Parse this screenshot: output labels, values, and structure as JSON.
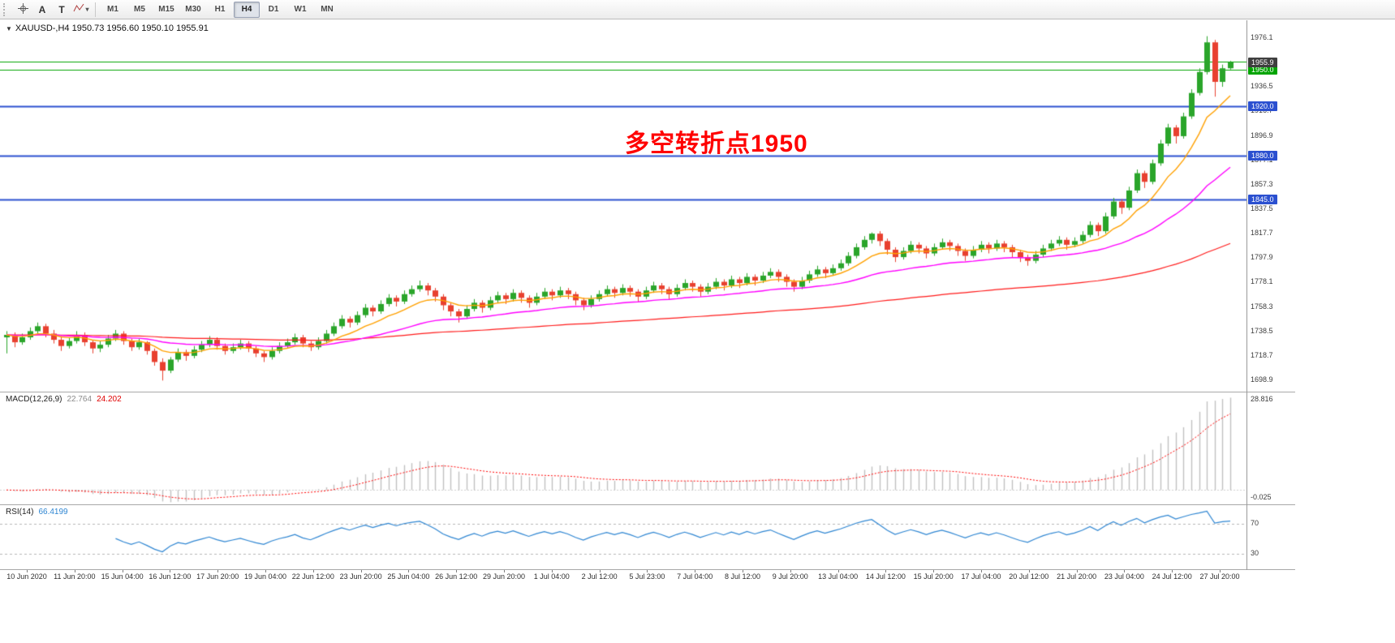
{
  "toolbar": {
    "tools": [
      {
        "name": "crosshair",
        "glyph": ""
      },
      {
        "name": "text",
        "glyph": "A"
      },
      {
        "name": "label",
        "glyph": "T"
      },
      {
        "name": "objects",
        "glyph": ""
      }
    ],
    "caret": "▾",
    "timeframes": [
      {
        "label": "M1",
        "active": false
      },
      {
        "label": "M5",
        "active": false
      },
      {
        "label": "M15",
        "active": false
      },
      {
        "label": "M30",
        "active": false
      },
      {
        "label": "H1",
        "active": false
      },
      {
        "label": "H4",
        "active": true
      },
      {
        "label": "D1",
        "active": false
      },
      {
        "label": "W1",
        "active": false
      },
      {
        "label": "MN",
        "active": false
      }
    ]
  },
  "chart": {
    "symbol_line": {
      "arrow": "▼",
      "symbol": "XAUUSD-,H4",
      "ohlc": "1950.73 1956.60 1950.10 1955.91"
    },
    "annotation": {
      "text": "多空转折点1950",
      "color": "#FF0000"
    },
    "price_axis": {
      "min": 1689.0,
      "max": 1989.9,
      "ticks": [
        1976.1,
        1956.3,
        1936.5,
        1916.7,
        1896.9,
        1877.1,
        1857.3,
        1837.5,
        1817.7,
        1797.9,
        1778.1,
        1758.3,
        1738.5,
        1718.7,
        1698.9
      ]
    },
    "hlines": [
      {
        "price": 1956.6,
        "color": "#00A400",
        "width": 1.2,
        "tag": ""
      },
      {
        "price": 1950.0,
        "color": "#00A400",
        "width": 1.2,
        "tag": "1950.0"
      },
      {
        "price": 1920.0,
        "color": "#2B50D0",
        "width": 1.8,
        "tag": "1920.0"
      },
      {
        "price": 1880.0,
        "color": "#2B50D0",
        "width": 1.8,
        "tag": "1880.0"
      },
      {
        "price": 1845.0,
        "color": "#2B50D0",
        "width": 1.8,
        "tag": "1845.0"
      }
    ],
    "price_marker": {
      "price": 1955.91,
      "tag": "1955.9",
      "bg": "#3F3F3F"
    },
    "colors": {
      "up": "#2AA52A",
      "down": "#E8402F",
      "ma_fast": "#FFA000",
      "ma_mid": "#FF00FF",
      "ma_slow": "#FF1A1A"
    },
    "ma_periods": {
      "fast": 10,
      "mid": 34,
      "slow": 120
    },
    "candles": [
      [
        1733,
        1738,
        1720,
        1735
      ],
      [
        1735,
        1737,
        1725,
        1729
      ],
      [
        1729,
        1736,
        1727,
        1733
      ],
      [
        1733,
        1741,
        1731,
        1738
      ],
      [
        1738,
        1745,
        1736,
        1742
      ],
      [
        1742,
        1744,
        1733,
        1736
      ],
      [
        1736,
        1739,
        1728,
        1731
      ],
      [
        1731,
        1734,
        1722,
        1726
      ],
      [
        1726,
        1733,
        1724,
        1730
      ],
      [
        1730,
        1738,
        1728,
        1735
      ],
      [
        1735,
        1737,
        1726,
        1729
      ],
      [
        1729,
        1731,
        1720,
        1724
      ],
      [
        1724,
        1730,
        1721,
        1727
      ],
      [
        1727,
        1735,
        1725,
        1732
      ],
      [
        1732,
        1739,
        1730,
        1736
      ],
      [
        1736,
        1738,
        1727,
        1730
      ],
      [
        1730,
        1732,
        1722,
        1725
      ],
      [
        1725,
        1732,
        1723,
        1729
      ],
      [
        1729,
        1730,
        1719,
        1722
      ],
      [
        1722,
        1724,
        1710,
        1713
      ],
      [
        1713,
        1716,
        1698,
        1706
      ],
      [
        1706,
        1717,
        1704,
        1715
      ],
      [
        1715,
        1724,
        1713,
        1721
      ],
      [
        1721,
        1723,
        1714,
        1718
      ],
      [
        1718,
        1726,
        1716,
        1723
      ],
      [
        1723,
        1730,
        1721,
        1727
      ],
      [
        1727,
        1734,
        1725,
        1731
      ],
      [
        1731,
        1733,
        1723,
        1726
      ],
      [
        1726,
        1728,
        1719,
        1722
      ],
      [
        1722,
        1728,
        1720,
        1725
      ],
      [
        1725,
        1731,
        1723,
        1728
      ],
      [
        1728,
        1730,
        1721,
        1724
      ],
      [
        1724,
        1726,
        1717,
        1720
      ],
      [
        1720,
        1722,
        1713,
        1717
      ],
      [
        1717,
        1725,
        1715,
        1722
      ],
      [
        1722,
        1729,
        1720,
        1726
      ],
      [
        1726,
        1732,
        1724,
        1729
      ],
      [
        1729,
        1736,
        1727,
        1733
      ],
      [
        1733,
        1735,
        1725,
        1728
      ],
      [
        1728,
        1730,
        1722,
        1725
      ],
      [
        1725,
        1733,
        1723,
        1730
      ],
      [
        1730,
        1739,
        1728,
        1736
      ],
      [
        1736,
        1745,
        1734,
        1742
      ],
      [
        1742,
        1751,
        1740,
        1748
      ],
      [
        1748,
        1750,
        1741,
        1745
      ],
      [
        1745,
        1754,
        1743,
        1751
      ],
      [
        1751,
        1760,
        1749,
        1757
      ],
      [
        1757,
        1759,
        1750,
        1754
      ],
      [
        1754,
        1763,
        1752,
        1760
      ],
      [
        1760,
        1768,
        1758,
        1765
      ],
      [
        1765,
        1767,
        1758,
        1762
      ],
      [
        1762,
        1771,
        1760,
        1768
      ],
      [
        1768,
        1775,
        1766,
        1772
      ],
      [
        1772,
        1779,
        1770,
        1775
      ],
      [
        1775,
        1777,
        1767,
        1771
      ],
      [
        1771,
        1773,
        1762,
        1766
      ],
      [
        1766,
        1768,
        1755,
        1759
      ],
      [
        1759,
        1761,
        1750,
        1754
      ],
      [
        1754,
        1756,
        1745,
        1750
      ],
      [
        1750,
        1759,
        1748,
        1756
      ],
      [
        1756,
        1764,
        1754,
        1761
      ],
      [
        1761,
        1763,
        1753,
        1757
      ],
      [
        1757,
        1766,
        1755,
        1763
      ],
      [
        1763,
        1770,
        1761,
        1767
      ],
      [
        1767,
        1769,
        1760,
        1764
      ],
      [
        1764,
        1772,
        1762,
        1769
      ],
      [
        1769,
        1771,
        1761,
        1765
      ],
      [
        1765,
        1767,
        1757,
        1761
      ],
      [
        1761,
        1769,
        1759,
        1766
      ],
      [
        1766,
        1773,
        1764,
        1770
      ],
      [
        1770,
        1772,
        1763,
        1767
      ],
      [
        1767,
        1774,
        1765,
        1771
      ],
      [
        1771,
        1773,
        1764,
        1768
      ],
      [
        1768,
        1770,
        1759,
        1763
      ],
      [
        1763,
        1765,
        1755,
        1759
      ],
      [
        1759,
        1767,
        1757,
        1764
      ],
      [
        1764,
        1771,
        1762,
        1768
      ],
      [
        1768,
        1775,
        1766,
        1772
      ],
      [
        1772,
        1774,
        1765,
        1769
      ],
      [
        1769,
        1776,
        1767,
        1773
      ],
      [
        1773,
        1775,
        1766,
        1770
      ],
      [
        1770,
        1772,
        1762,
        1766
      ],
      [
        1766,
        1774,
        1764,
        1771
      ],
      [
        1771,
        1778,
        1769,
        1775
      ],
      [
        1775,
        1777,
        1768,
        1772
      ],
      [
        1772,
        1774,
        1764,
        1768
      ],
      [
        1768,
        1776,
        1766,
        1773
      ],
      [
        1773,
        1780,
        1771,
        1777
      ],
      [
        1777,
        1779,
        1770,
        1774
      ],
      [
        1774,
        1776,
        1766,
        1770
      ],
      [
        1770,
        1777,
        1768,
        1774
      ],
      [
        1774,
        1781,
        1772,
        1778
      ],
      [
        1778,
        1780,
        1771,
        1775
      ],
      [
        1775,
        1783,
        1773,
        1780
      ],
      [
        1780,
        1782,
        1773,
        1777
      ],
      [
        1777,
        1785,
        1775,
        1782
      ],
      [
        1782,
        1784,
        1775,
        1779
      ],
      [
        1779,
        1786,
        1777,
        1783
      ],
      [
        1783,
        1789,
        1781,
        1786
      ],
      [
        1786,
        1788,
        1778,
        1782
      ],
      [
        1782,
        1784,
        1774,
        1778
      ],
      [
        1778,
        1780,
        1770,
        1774
      ],
      [
        1774,
        1782,
        1772,
        1779
      ],
      [
        1779,
        1787,
        1777,
        1784
      ],
      [
        1784,
        1791,
        1782,
        1788
      ],
      [
        1788,
        1790,
        1781,
        1785
      ],
      [
        1785,
        1792,
        1783,
        1789
      ],
      [
        1789,
        1796,
        1787,
        1793
      ],
      [
        1793,
        1802,
        1791,
        1799
      ],
      [
        1799,
        1809,
        1797,
        1806
      ],
      [
        1806,
        1815,
        1804,
        1812
      ],
      [
        1812,
        1818,
        1809,
        1817
      ],
      [
        1817,
        1819,
        1807,
        1811
      ],
      [
        1811,
        1813,
        1800,
        1804
      ],
      [
        1804,
        1806,
        1794,
        1798
      ],
      [
        1798,
        1806,
        1796,
        1803
      ],
      [
        1803,
        1811,
        1801,
        1808
      ],
      [
        1808,
        1810,
        1801,
        1805
      ],
      [
        1805,
        1807,
        1797,
        1801
      ],
      [
        1801,
        1809,
        1799,
        1806
      ],
      [
        1806,
        1813,
        1804,
        1810
      ],
      [
        1810,
        1812,
        1803,
        1807
      ],
      [
        1807,
        1809,
        1799,
        1803
      ],
      [
        1803,
        1805,
        1795,
        1799
      ],
      [
        1799,
        1807,
        1797,
        1804
      ],
      [
        1804,
        1811,
        1802,
        1808
      ],
      [
        1808,
        1810,
        1801,
        1805
      ],
      [
        1805,
        1812,
        1803,
        1809
      ],
      [
        1809,
        1811,
        1802,
        1806
      ],
      [
        1806,
        1808,
        1798,
        1802
      ],
      [
        1802,
        1804,
        1794,
        1798
      ],
      [
        1798,
        1800,
        1791,
        1795
      ],
      [
        1795,
        1803,
        1793,
        1800
      ],
      [
        1800,
        1808,
        1798,
        1805
      ],
      [
        1805,
        1812,
        1803,
        1809
      ],
      [
        1809,
        1815,
        1807,
        1812
      ],
      [
        1812,
        1814,
        1804,
        1808
      ],
      [
        1808,
        1814,
        1806,
        1811
      ],
      [
        1811,
        1819,
        1809,
        1816
      ],
      [
        1816,
        1827,
        1814,
        1824
      ],
      [
        1824,
        1826,
        1815,
        1819
      ],
      [
        1819,
        1834,
        1817,
        1831
      ],
      [
        1831,
        1846,
        1829,
        1843
      ],
      [
        1843,
        1845,
        1833,
        1838
      ],
      [
        1838,
        1855,
        1836,
        1852
      ],
      [
        1852,
        1869,
        1850,
        1866
      ],
      [
        1866,
        1868,
        1854,
        1859
      ],
      [
        1859,
        1877,
        1857,
        1874
      ],
      [
        1874,
        1893,
        1872,
        1890
      ],
      [
        1890,
        1906,
        1888,
        1903
      ],
      [
        1903,
        1905,
        1890,
        1896
      ],
      [
        1896,
        1915,
        1894,
        1912
      ],
      [
        1912,
        1934,
        1910,
        1931
      ],
      [
        1931,
        1951,
        1929,
        1948
      ],
      [
        1948,
        1977,
        1946,
        1972
      ],
      [
        1972,
        1974,
        1928,
        1940
      ],
      [
        1940,
        1954,
        1936,
        1951
      ],
      [
        1951,
        1957,
        1950,
        1956
      ]
    ]
  },
  "macd": {
    "label": "MACD(12,26,9)",
    "value_main": "22.764",
    "value_signal": "24.202",
    "axis_top": "28.816",
    "axis_bottom": "-0.025",
    "fast": 12,
    "slow": 26,
    "signal": 9,
    "colors": {
      "hist": "#C0C0C0",
      "signal_line": "#FF0000"
    }
  },
  "rsi": {
    "label": "RSI(14)",
    "value": "66.4199",
    "period": 14,
    "levels": [
      70,
      30
    ],
    "color": "#2F86D2"
  },
  "time_axis": {
    "labels": [
      "10 Jun 2020",
      "11 Jun 20:00",
      "15 Jun 04:00",
      "16 Jun 12:00",
      "17 Jun 20:00",
      "19 Jun 04:00",
      "22 Jun 12:00",
      "23 Jun 20:00",
      "25 Jun 04:00",
      "26 Jun 12:00",
      "29 Jun 20:00",
      "1 Jul 04:00",
      "2 Jul 12:00",
      "5 Jul 23:00",
      "7 Jul 04:00",
      "8 Jul 12:00",
      "9 Jul 20:00",
      "13 Jul 04:00",
      "14 Jul 12:00",
      "15 Jul 20:00",
      "17 Jul 04:00",
      "20 Jul 12:00",
      "21 Jul 20:00",
      "23 Jul 04:00",
      "24 Jul 12:00",
      "27 Jul 20:00"
    ]
  }
}
